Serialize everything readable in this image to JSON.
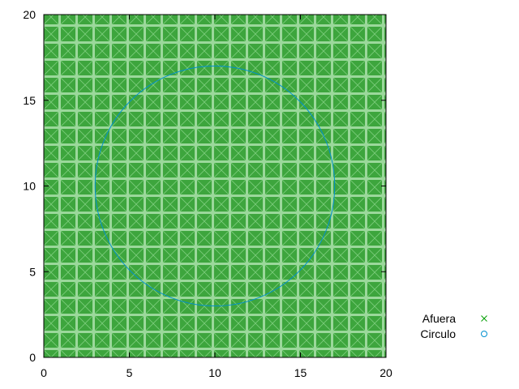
{
  "chart_data": {
    "type": "scatter",
    "title": "",
    "xlabel": "",
    "ylabel": "",
    "xlim": [
      0,
      20
    ],
    "ylim": [
      0,
      20
    ],
    "xticks": [
      0,
      5,
      10,
      15,
      20
    ],
    "yticks": [
      0,
      5,
      10,
      15,
      20
    ],
    "x_tick_labels": [
      "0",
      "5",
      "10",
      "15",
      "20"
    ],
    "y_tick_labels": [
      "0",
      "5",
      "10",
      "15",
      "20"
    ],
    "grid": false,
    "legend_position": "bottom-right",
    "series": [
      {
        "name": "Afuera",
        "marker": "x",
        "color": "#009e00",
        "pattern": "uniform grid of points filling the full square",
        "x_range": [
          0,
          20
        ],
        "y_range": [
          0,
          20
        ]
      },
      {
        "name": "Circulo",
        "marker": "o",
        "color": "#0090d0",
        "shape": "circle",
        "center": [
          10,
          10
        ],
        "radius": 7
      }
    ]
  }
}
